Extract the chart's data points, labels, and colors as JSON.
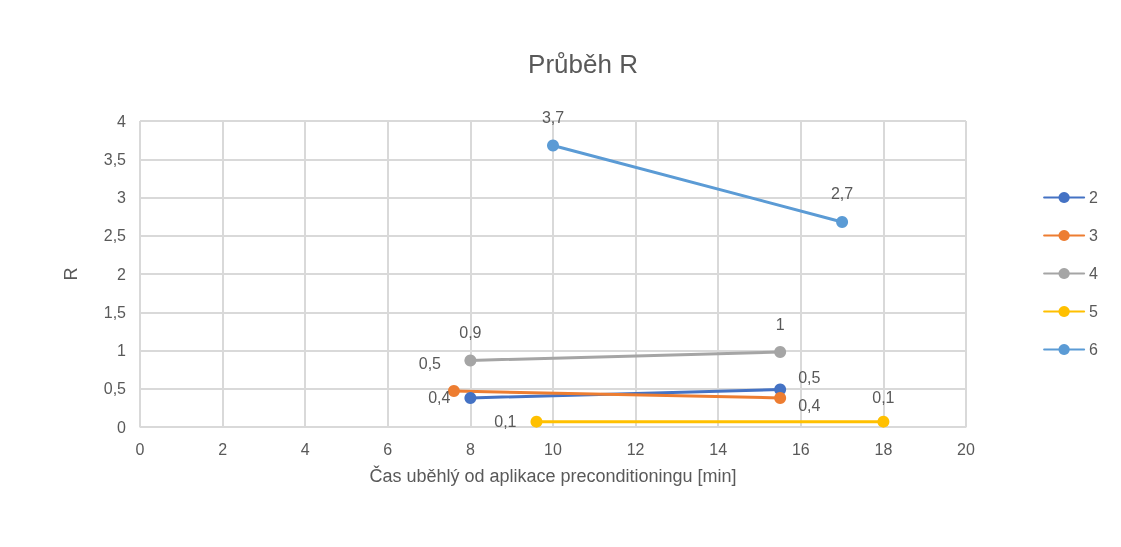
{
  "chart_data": {
    "type": "line",
    "title": "Průběh R",
    "xlabel": "Čas uběhlý od aplikace preconditioningu [min]",
    "ylabel": "R",
    "xlim": [
      0,
      20
    ],
    "xticks": [
      0,
      2,
      4,
      6,
      8,
      10,
      12,
      14,
      16,
      18,
      20
    ],
    "ylim": [
      0,
      4
    ],
    "yticks": [
      0,
      {
        "value": 0.5,
        "label": "0,5"
      },
      1,
      {
        "value": 1.5,
        "label": "1,5"
      },
      2,
      {
        "value": 2.5,
        "label": "2,5"
      },
      3,
      {
        "value": 3.5,
        "label": "3,5"
      },
      4
    ],
    "grid": true,
    "legend": "right",
    "marker": "circle",
    "line_style": "solid",
    "series": [
      {
        "name": "2",
        "color": "#4472c4",
        "x": [
          8,
          15.5
        ],
        "values": [
          0.38,
          0.49
        ],
        "value_labels": [
          "0,4",
          "0,5"
        ]
      },
      {
        "name": "3",
        "color": "#ed7d31",
        "x": [
          7.6,
          15.5
        ],
        "values": [
          0.47,
          0.38
        ],
        "value_labels": [
          "0,5",
          "0,4"
        ]
      },
      {
        "name": "4",
        "color": "#a5a5a5",
        "x": [
          8,
          15.5
        ],
        "values": [
          0.87,
          0.98
        ],
        "value_labels": [
          "0,9",
          "1"
        ]
      },
      {
        "name": "5",
        "color": "#ffc000",
        "x": [
          9.6,
          18
        ],
        "values": [
          0.07,
          0.07
        ],
        "value_labels": [
          "0,1",
          "0,1"
        ]
      },
      {
        "name": "6",
        "color": "#5b9bd5",
        "x": [
          10,
          17
        ],
        "values": [
          3.68,
          2.68
        ],
        "value_labels": [
          "3,7",
          "2,7"
        ]
      }
    ]
  }
}
